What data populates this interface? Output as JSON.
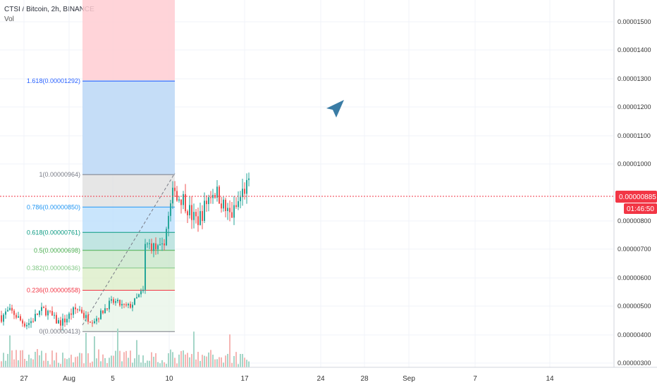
{
  "header": {
    "title": "CTSI / Bitcoin, 2h, BINANCE",
    "volume_label": "Vol"
  },
  "price_axis": {
    "ticks": [
      "0.00001500",
      "0.00001400",
      "0.00001300",
      "0.00001200",
      "0.00001100",
      "0.00001000",
      "0.00000800",
      "0.00000700",
      "0.00000600",
      "0.00000500",
      "0.00000400",
      "0.00000300"
    ],
    "current_price": "0.00000885",
    "countdown": "01:46:50"
  },
  "time_axis": {
    "ticks": [
      "27",
      "Aug",
      "5",
      "10",
      "17",
      "24",
      "28",
      "Sep",
      "7",
      "14"
    ]
  },
  "fib_levels": [
    {
      "label": "1.618(0.00001292)",
      "price": 1.292e-05,
      "color": "#2962ff"
    },
    {
      "label": "1(0.00000964)",
      "price": 9.64e-06,
      "color": "#787b86"
    },
    {
      "label": "0.786(0.00000850)",
      "price": 8.5e-06,
      "color": "#2196f3"
    },
    {
      "label": "0.618(0.00000761)",
      "price": 7.61e-06,
      "color": "#089981"
    },
    {
      "label": "0.5(0.00000698)",
      "price": 6.98e-06,
      "color": "#4caf50"
    },
    {
      "label": "0.382(0.00000636)",
      "price": 6.36e-06,
      "color": "#81c784"
    },
    {
      "label": "0.236(0.00000558)",
      "price": 5.58e-06,
      "color": "#f23645"
    },
    {
      "label": "0(0.00000413)",
      "price": 4.13e-06,
      "color": "#787b86"
    }
  ],
  "colors": {
    "up": "#26a69a",
    "down": "#ef5350",
    "price_line": "#f23645",
    "arrow": "#3a7ca5",
    "grid": "#f0f3fa"
  },
  "chart_data": {
    "type": "candlestick",
    "title": "CTSI / Bitcoin, 2h, BINANCE",
    "ylim": [
      2.7e-06,
      1.62e-05
    ],
    "current_price": 8.85e-06,
    "price_phases": [
      {
        "period": "Jul 25 - Aug 4",
        "range": [
          4.1e-06,
          5.2e-06
        ]
      },
      {
        "period": "Aug 4 - Aug 9",
        "range": [
          4.3e-06,
          5.7e-06
        ]
      },
      {
        "period": "Aug 9 - Aug 10",
        "range": [
          5.6e-06,
          9.6e-06
        ]
      },
      {
        "period": "Aug 10 - Aug 17",
        "range": [
          7.1e-06,
          9.5e-06
        ]
      }
    ],
    "volume_series": "Vol"
  }
}
